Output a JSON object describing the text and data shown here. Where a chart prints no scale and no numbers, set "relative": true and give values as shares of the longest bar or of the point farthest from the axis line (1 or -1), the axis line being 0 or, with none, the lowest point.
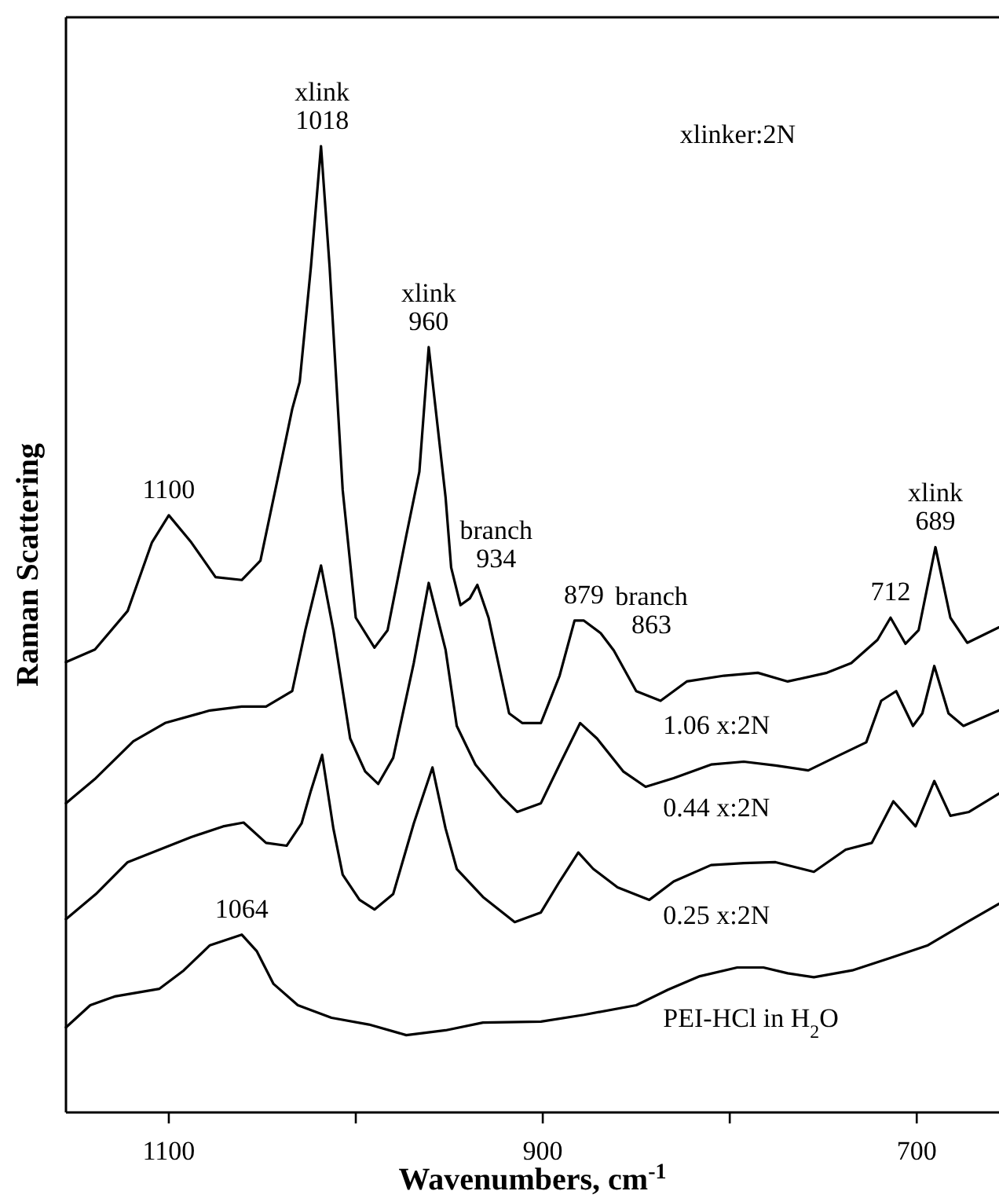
{
  "chart_data": {
    "type": "line",
    "relative": true,
    "xlabel": "Wavenumbers, cm$^{-1}$",
    "ylabel": "Raman Scattering",
    "xlim": [
      1155,
      656
    ],
    "xticks": [
      1100,
      {
        "value": 1000,
        "label": null
      },
      900,
      {
        "value": 800,
        "label": null
      },
      700
    ],
    "annotations": [
      "xlinker:2N",
      {
        "text": "1100",
        "x": 1100,
        "y": 0.618
      },
      {
        "text": "xlink\n1018",
        "x": 1018,
        "y": 1
      },
      {
        "text": "xlink\n960",
        "x": 961,
        "y": 0.792
      },
      {
        "text": "branch\n934",
        "x": 935,
        "y": 0.546
      },
      {
        "text": "879",
        "x": 878,
        "y": 0.509
      },
      {
        "text": "branch\n863",
        "x": 862,
        "y": 0.478
      },
      {
        "text": "712",
        "x": 714,
        "y": 0.512
      },
      {
        "text": "xlink\n689",
        "x": 690,
        "y": 0.585
      },
      {
        "text": "1064",
        "x": 1061,
        "y": 0.184
      }
    ],
    "series": [
      {
        "name": "1.06 x:2N",
        "color": "#000000",
        "x": [
          1155,
          1139.5,
          1122,
          1109,
          1100,
          1088,
          1075,
          1061,
          1051,
          1041,
          1034,
          1030,
          1024,
          1018.6,
          1014,
          1007,
          1000,
          990,
          983,
          973,
          966,
          961,
          952,
          949,
          944,
          939,
          935,
          929,
          918,
          911,
          901,
          891,
          883,
          878,
          869,
          862,
          850,
          837,
          823,
          803,
          785,
          769,
          748,
          735,
          721,
          714,
          706,
          699,
          690,
          682,
          673,
          656
        ],
        "values": [
          0.466,
          0.479,
          0.519,
          0.59,
          0.618,
          0.59,
          0.554,
          0.551,
          0.571,
          0.663,
          0.728,
          0.756,
          0.875,
          1,
          0.875,
          0.644,
          0.512,
          0.481,
          0.499,
          0.597,
          0.663,
          0.792,
          0.637,
          0.564,
          0.525,
          0.532,
          0.546,
          0.512,
          0.413,
          0.403,
          0.403,
          0.452,
          0.509,
          0.509,
          0.496,
          0.478,
          0.436,
          0.426,
          0.446,
          0.452,
          0.455,
          0.446,
          0.455,
          0.465,
          0.489,
          0.512,
          0.485,
          0.499,
          0.585,
          0.512,
          0.486,
          0.502
        ]
      },
      {
        "name": "0.44 x:2N",
        "color": "#000000",
        "x": [
          1155,
          1139,
          1119,
          1102,
          1078,
          1061,
          1048,
          1034,
          1027,
          1018.6,
          1012,
          1003,
          995,
          988,
          980,
          969,
          961,
          952,
          946,
          936,
          922,
          913.7,
          901,
          891,
          880,
          871,
          857,
          845,
          830,
          810,
          792.5,
          775.5,
          758,
          741,
          727,
          719,
          711,
          702,
          697,
          690.6,
          683,
          675,
          656
        ],
        "values": [
          0.32,
          0.346,
          0.384,
          0.403,
          0.416,
          0.42,
          0.42,
          0.436,
          0.499,
          0.566,
          0.499,
          0.387,
          0.353,
          0.34,
          0.367,
          0.465,
          0.548,
          0.479,
          0.4,
          0.36,
          0.327,
          0.311,
          0.32,
          0.36,
          0.403,
          0.387,
          0.353,
          0.337,
          0.346,
          0.36,
          0.363,
          0.359,
          0.354,
          0.37,
          0.383,
          0.426,
          0.436,
          0.4,
          0.413,
          0.462,
          0.413,
          0.4,
          0.416
        ]
      },
      {
        "name": "0.25 x:2N",
        "color": "#000000",
        "x": [
          1155,
          1139,
          1122,
          1105,
          1088,
          1071,
          1060,
          1048,
          1037,
          1029,
          1024,
          1018,
          1012,
          1007,
          998,
          990,
          980,
          969,
          959,
          952,
          946,
          932,
          915,
          901,
          891,
          881,
          873,
          860,
          843,
          830,
          810,
          792.5,
          775.5,
          755,
          738,
          724,
          712.5,
          700.6,
          690.6,
          682,
          672,
          656
        ],
        "values": [
          0.2,
          0.226,
          0.259,
          0.272,
          0.285,
          0.296,
          0.3,
          0.279,
          0.276,
          0.299,
          0.333,
          0.37,
          0.294,
          0.246,
          0.22,
          0.21,
          0.226,
          0.299,
          0.357,
          0.294,
          0.252,
          0.223,
          0.197,
          0.207,
          0.239,
          0.269,
          0.252,
          0.233,
          0.22,
          0.239,
          0.256,
          0.258,
          0.259,
          0.249,
          0.272,
          0.279,
          0.322,
          0.296,
          0.343,
          0.307,
          0.311,
          0.33
        ]
      },
      {
        "name": "PEI-HCl in H$_{2}$O",
        "color": "#000000",
        "x": [
          1155,
          1142,
          1129,
          1105,
          1092,
          1078,
          1061,
          1053,
          1044,
          1031,
          1013,
          993,
          973,
          952,
          932,
          901,
          878,
          850,
          833,
          816,
          796,
          782,
          769,
          755,
          734.5,
          714,
          694,
          673,
          656
        ],
        "values": [
          0.088,
          0.111,
          0.12,
          0.128,
          0.147,
          0.173,
          0.184,
          0.167,
          0.133,
          0.111,
          0.098,
          0.091,
          0.08,
          0.085,
          0.093,
          0.094,
          0.101,
          0.111,
          0.127,
          0.141,
          0.15,
          0.15,
          0.144,
          0.14,
          0.147,
          0.16,
          0.173,
          0.197,
          0.216
        ]
      }
    ]
  }
}
